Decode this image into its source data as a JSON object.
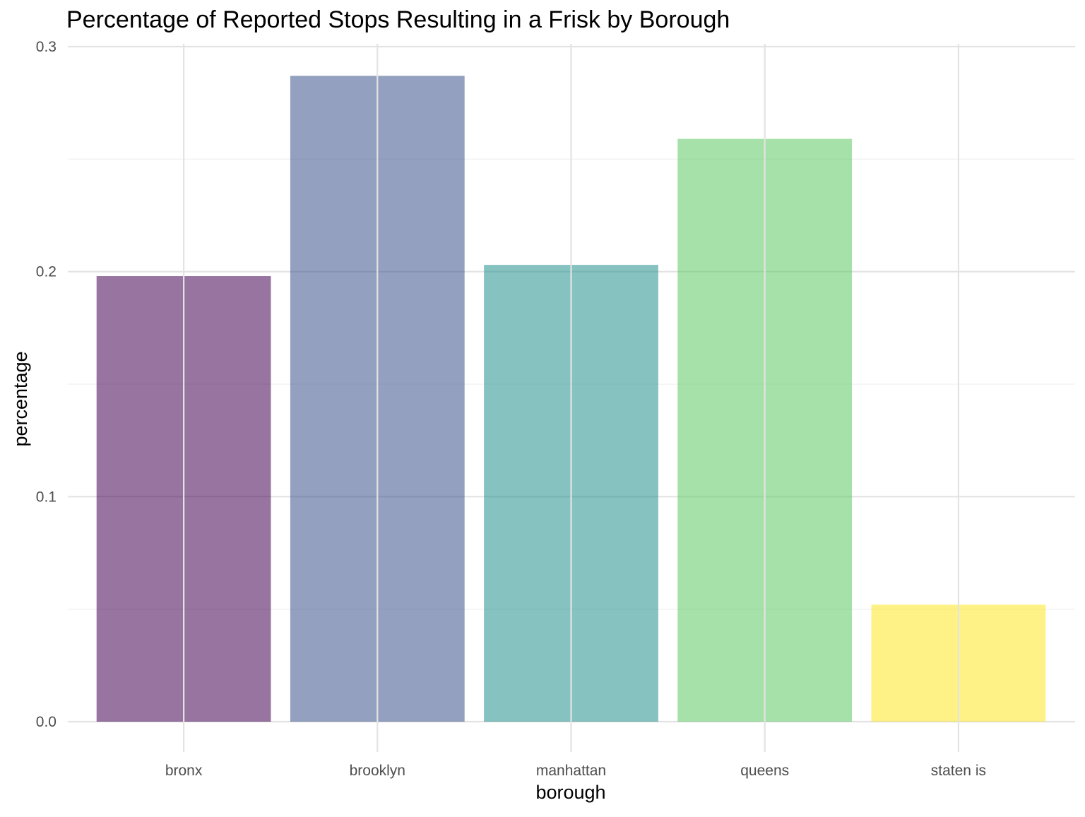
{
  "chart_data": {
    "type": "bar",
    "title": "Percentage of Reported Stops Resulting in a Frisk by Borough",
    "xlabel": "borough",
    "ylabel": "percentage",
    "categories": [
      "bronx",
      "brooklyn",
      "manhattan",
      "queens",
      "staten is"
    ],
    "values": [
      0.198,
      0.287,
      0.203,
      0.259,
      0.052
    ],
    "ylim": [
      0,
      0.3
    ],
    "yticks": [
      0.0,
      0.1,
      0.2,
      0.3
    ],
    "ytick_labels": [
      "0.0",
      "0.1",
      "0.2",
      "0.3"
    ],
    "colors": [
      "#440154",
      "#3b528b",
      "#21908c",
      "#5dc863",
      "#fde725"
    ],
    "bar_opacity": 0.55,
    "grid": true,
    "legend": "none"
  }
}
